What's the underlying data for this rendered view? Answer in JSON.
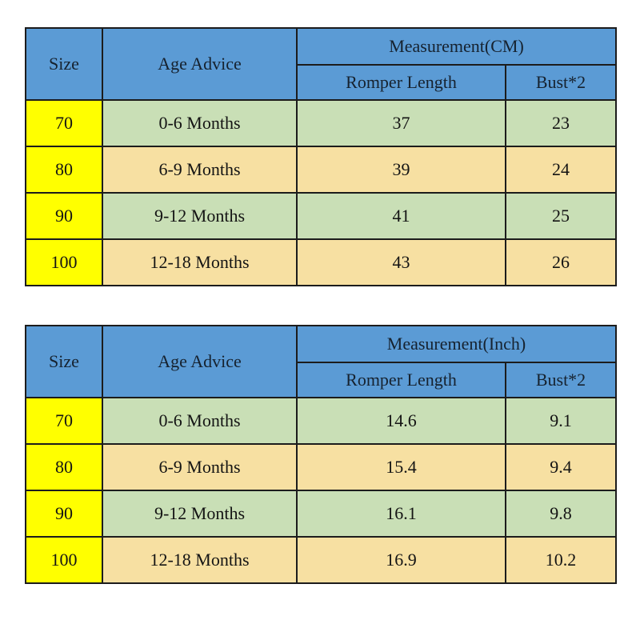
{
  "colors": {
    "header_blue": "#5b9bd5",
    "size_yellow": "#ffff00",
    "row_green": "#c9dfb6",
    "row_tan": "#f7e0a2",
    "border_black": "#1c1c1c",
    "header_text": "#16222f",
    "body_text": "#141414"
  },
  "chart_data": [
    {
      "type": "table",
      "title": "Measurement(CM)",
      "header": {
        "size": "Size",
        "age": "Age Advice",
        "group": "Measurement(CM)",
        "sub1": "Romper Length",
        "sub2": "Bust*2"
      },
      "columns": [
        "Size",
        "Age Advice",
        "Romper Length",
        "Bust*2"
      ],
      "rows": [
        {
          "size": "70",
          "age": "0-6 Months",
          "romper_length": "37",
          "bust2": "23"
        },
        {
          "size": "80",
          "age": "6-9 Months",
          "romper_length": "39",
          "bust2": "24"
        },
        {
          "size": "90",
          "age": "9-12 Months",
          "romper_length": "41",
          "bust2": "25"
        },
        {
          "size": "100",
          "age": "12-18 Months",
          "romper_length": "43",
          "bust2": "26"
        }
      ]
    },
    {
      "type": "table",
      "title": "Measurement(Inch)",
      "header": {
        "size": "Size",
        "age": "Age Advice",
        "group": "Measurement(Inch)",
        "sub1": "Romper Length",
        "sub2": "Bust*2"
      },
      "columns": [
        "Size",
        "Age Advice",
        "Romper Length",
        "Bust*2"
      ],
      "rows": [
        {
          "size": "70",
          "age": "0-6 Months",
          "romper_length": "14.6",
          "bust2": "9.1"
        },
        {
          "size": "80",
          "age": "6-9 Months",
          "romper_length": "15.4",
          "bust2": "9.4"
        },
        {
          "size": "90",
          "age": "9-12 Months",
          "romper_length": "16.1",
          "bust2": "9.8"
        },
        {
          "size": "100",
          "age": "12-18 Months",
          "romper_length": "16.9",
          "bust2": "10.2"
        }
      ]
    }
  ]
}
